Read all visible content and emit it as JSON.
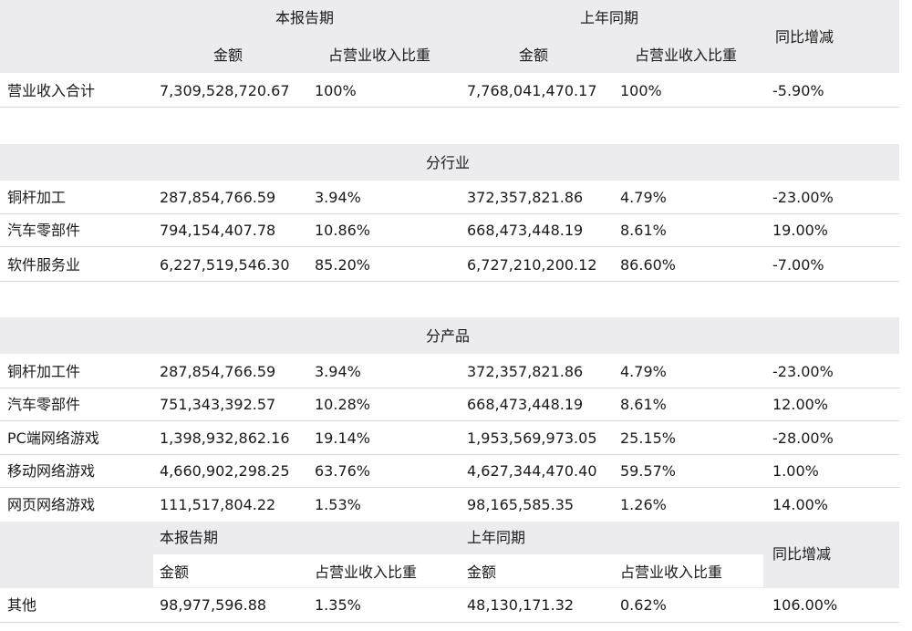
{
  "header": {
    "current_period": "本报告期",
    "prior_period": "上年同期",
    "amount": "金额",
    "share": "占营业收入比重",
    "yoy": "同比增减"
  },
  "total": {
    "label": "营业收入合计",
    "a1": "7,309,528,720.67",
    "p1": "100%",
    "a2": "7,768,041,470.17",
    "p2": "100%",
    "yoy": "-5.90%"
  },
  "by_industry": {
    "title": "分行业",
    "rows": [
      {
        "label": "铜杆加工",
        "a1": "287,854,766.59",
        "p1": "3.94%",
        "a2": "372,357,821.86",
        "p2": "4.79%",
        "yoy": "-23.00%"
      },
      {
        "label": "汽车零部件",
        "a1": "794,154,407.78",
        "p1": "10.86%",
        "a2": "668,473,448.19",
        "p2": "8.61%",
        "yoy": "19.00%"
      },
      {
        "label": "软件服务业",
        "a1": "6,227,519,546.30",
        "p1": "85.20%",
        "a2": "6,727,210,200.12",
        "p2": "86.60%",
        "yoy": "-7.00%"
      }
    ]
  },
  "by_product": {
    "title": "分产品",
    "rows": [
      {
        "label": "铜杆加工件",
        "a1": "287,854,766.59",
        "p1": "3.94%",
        "a2": "372,357,821.86",
        "p2": "4.79%",
        "yoy": "-23.00%"
      },
      {
        "label": "汽车零部件",
        "a1": "751,343,392.57",
        "p1": "10.28%",
        "a2": "668,473,448.19",
        "p2": "8.61%",
        "yoy": "12.00%"
      },
      {
        "label": "PC端网络游戏",
        "a1": "1,398,932,862.16",
        "p1": "19.14%",
        "a2": "1,953,569,973.05",
        "p2": "25.15%",
        "yoy": "-28.00%"
      },
      {
        "label": "移动网络游戏",
        "a1": "4,660,902,298.25",
        "p1": "63.76%",
        "a2": "4,627,344,470.40",
        "p2": "59.57%",
        "yoy": "1.00%"
      },
      {
        "label": "网页网络游戏",
        "a1": "111,517,804.22",
        "p1": "1.53%",
        "a2": "98,165,585.35",
        "p2": "1.26%",
        "yoy": "14.00%"
      }
    ]
  },
  "other": {
    "label": "其他",
    "a1": "98,977,596.88",
    "p1": "1.35%",
    "a2": "48,130,171.32",
    "p2": "0.62%",
    "yoy": "106.00%"
  }
}
